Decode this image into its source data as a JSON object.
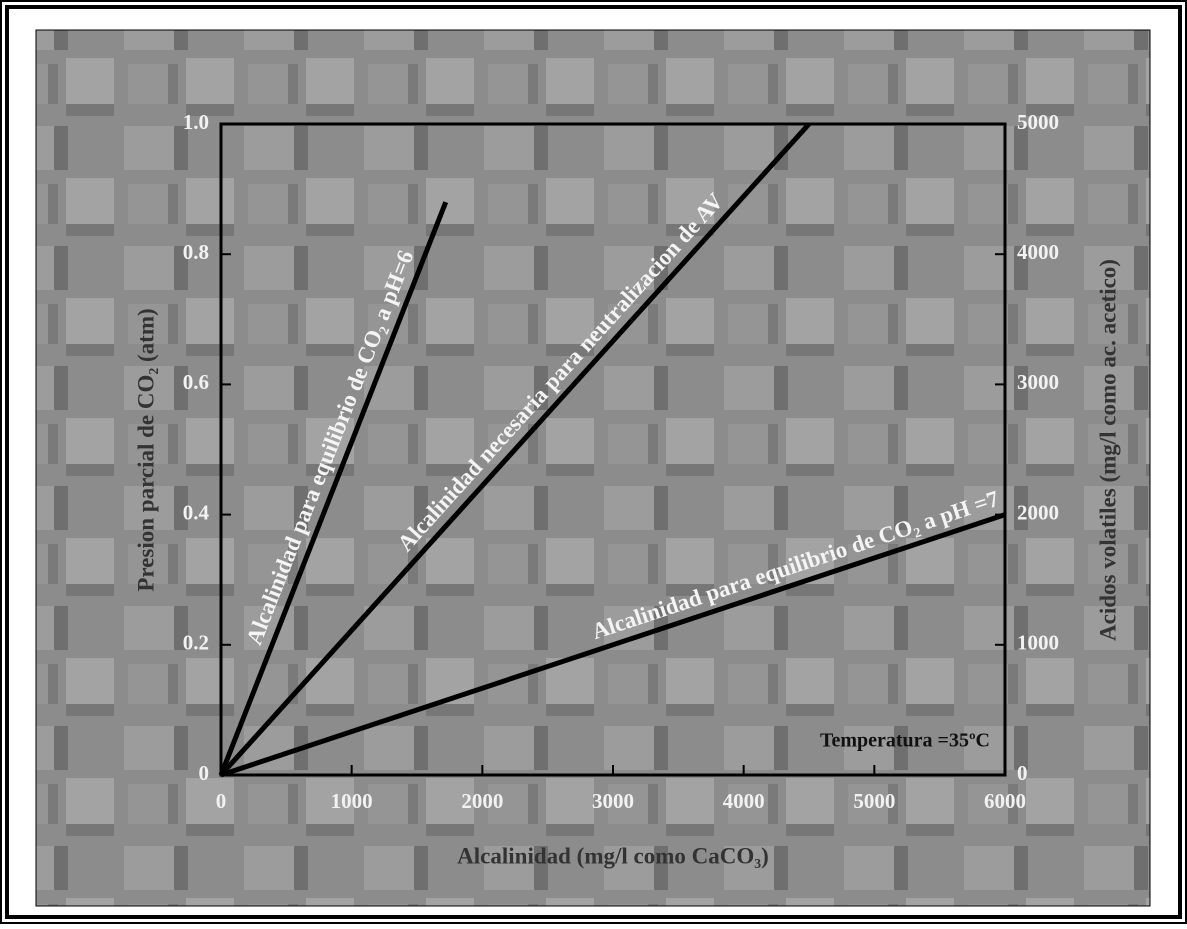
{
  "chart_data": {
    "type": "line",
    "x_label": "Alcalinidad (mg/l como CaCO₃)",
    "y_label": "Presion parcial de CO₂ (atm)",
    "y2_label": "Acidos volatiles (mg/l como ac. acetico)",
    "annotation": "Temperatura =35ºC",
    "xlim": [
      0,
      6000
    ],
    "xticks": [
      0,
      1000,
      2000,
      3000,
      4000,
      5000,
      6000
    ],
    "ylim": [
      0,
      1
    ],
    "yticks": [
      0,
      0.2,
      0.4,
      0.6,
      0.8,
      {
        "value": 1,
        "label": "1.0"
      }
    ],
    "y2lim": [
      0,
      5000
    ],
    "y2ticks": [
      0,
      1000,
      2000,
      3000,
      4000,
      5000
    ],
    "series": [
      {
        "name": "Alcalinidad para equilibrio de CO₂ a pH=6",
        "color": "#000000",
        "x": [
          0,
          1720
        ],
        "values": [
          0,
          0.88
        ]
      },
      {
        "name": "Alcalinidad necesaria para neutralizacion de AV",
        "color": "#000000",
        "axis": "y2",
        "x": [
          0,
          4500
        ],
        "values": [
          0,
          5000
        ]
      },
      {
        "name": "Alcalinidad para equilibrio de CO₂ a pH =7",
        "color": "#000000",
        "x": [
          0,
          6000
        ],
        "values": [
          0,
          0.4
        ]
      }
    ]
  }
}
